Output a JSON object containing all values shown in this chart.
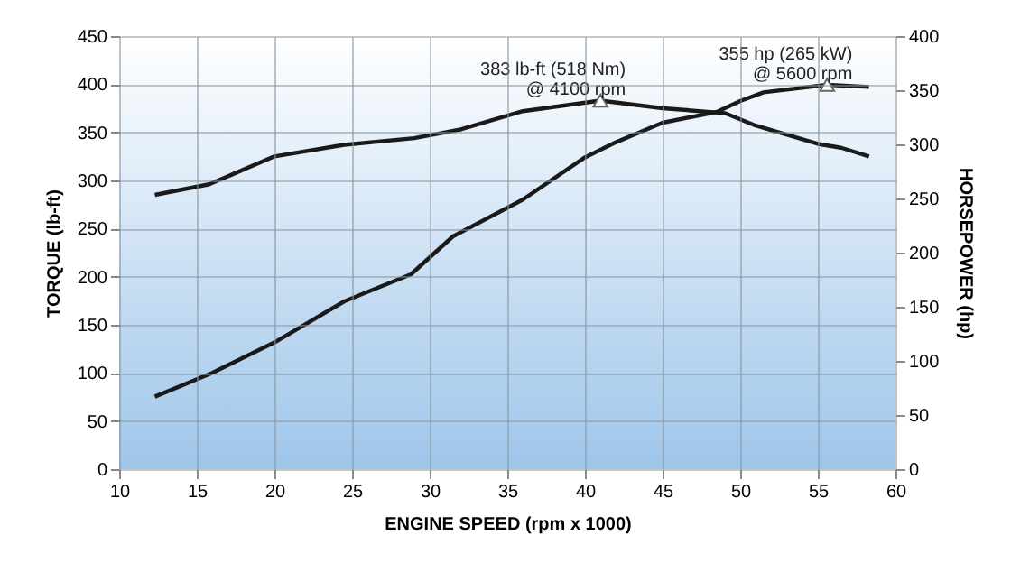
{
  "chart_data": {
    "type": "line",
    "xlabel": "ENGINE SPEED (rpm x 1000)",
    "ylabel": "TORQUE (lb-ft)",
    "y2label": "HORSEPOWER (hp)",
    "series": [
      {
        "color": "#1a1a1a",
        "x": [
          12.3,
          15.8,
          20,
          24.5,
          29,
          32,
          36,
          41,
          45,
          49,
          51,
          55,
          56.5,
          58.3
        ],
        "values": [
          285,
          296,
          325,
          337,
          344,
          353,
          372,
          383,
          375,
          370,
          357,
          338,
          334,
          325
        ]
      },
      {
        "color": "#1a1a1a",
        "axis": "y2",
        "x": [
          12.3,
          16,
          20,
          24.5,
          28.8,
          31.5,
          36,
          40,
          42,
          45,
          48.5,
          50,
          51.5,
          55.6,
          58.3
        ],
        "values": [
          67,
          89,
          117,
          155,
          180,
          215,
          249,
          288,
          302,
          320,
          330,
          340,
          348,
          355,
          353
        ]
      }
    ],
    "annotations": [
      "383 lb-ft (518 Nm)\n@ 4100 rpm",
      "355 hp (265 kW)\n@ 5600 rpm"
    ],
    "xlim": [
      10,
      60
    ],
    "xticks": [
      10,
      15,
      20,
      25,
      30,
      35,
      40,
      45,
      50,
      55,
      60
    ],
    "ylim": [
      0,
      450
    ],
    "yticks": [
      0,
      50,
      100,
      150,
      200,
      250,
      300,
      350,
      400,
      450
    ],
    "y2lim": [
      0,
      400
    ],
    "y2ticks": [
      0,
      50,
      100,
      150,
      200,
      250,
      300,
      350,
      400
    ],
    "grid": true,
    "line_style": "solid",
    "marker": "none"
  }
}
